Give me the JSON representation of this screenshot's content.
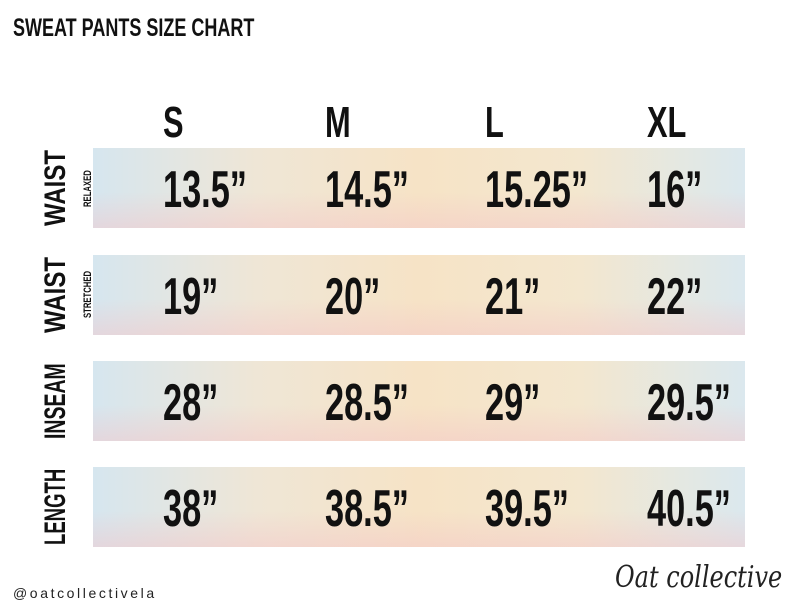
{
  "title": "SWEAT PANTS SIZE CHART",
  "sizes": [
    "S",
    "M",
    "L",
    "XL"
  ],
  "rows": [
    {
      "label": "WAIST",
      "sublabel": "RELAXED",
      "values": [
        "13.5”",
        "14.5”",
        "15.25”",
        "16”"
      ]
    },
    {
      "label": "WAIST",
      "sublabel": "STRETCHED",
      "values": [
        "19”",
        "20”",
        "21”",
        "22”"
      ]
    },
    {
      "label": "INSEAM",
      "sublabel": "",
      "values": [
        "28”",
        "28.5”",
        "29”",
        "29.5”"
      ]
    },
    {
      "label": "LENGTH",
      "sublabel": "",
      "values": [
        "38”",
        "38.5”",
        "39.5”",
        "40.5”"
      ]
    }
  ],
  "footer": {
    "handle": "@oatcollectivela",
    "logo": "Oat collective"
  }
}
